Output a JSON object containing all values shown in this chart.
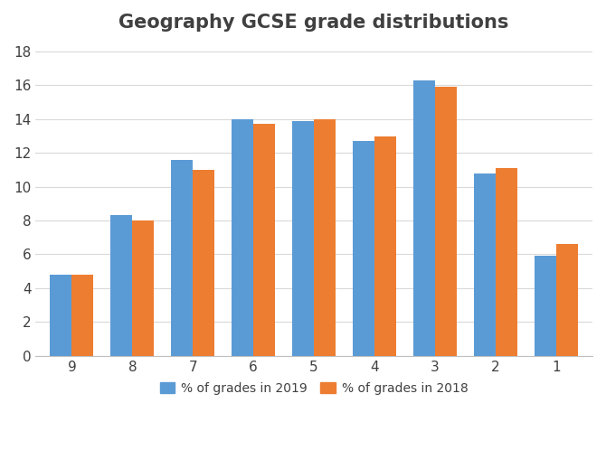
{
  "title": "Geography GCSE grade distributions",
  "categories": [
    "9",
    "8",
    "7",
    "6",
    "5",
    "4",
    "3",
    "2",
    "1"
  ],
  "values_2019": [
    4.8,
    8.3,
    11.6,
    14.0,
    13.9,
    12.7,
    16.3,
    10.8,
    5.9
  ],
  "values_2018": [
    4.8,
    8.0,
    11.0,
    13.7,
    14.0,
    13.0,
    15.9,
    11.1,
    6.6
  ],
  "color_2019": "#5B9BD5",
  "color_2018": "#ED7D31",
  "legend_2019": "% of grades in 2019",
  "legend_2018": "% of grades in 2018",
  "ylim": [
    0,
    18.5
  ],
  "yticks": [
    0,
    2,
    4,
    6,
    8,
    10,
    12,
    14,
    16,
    18
  ],
  "background_color": "#FFFFFF",
  "title_fontsize": 15,
  "tick_fontsize": 11,
  "bar_width": 0.36,
  "grid_color": "#D9D9D9",
  "title_color": "#404040",
  "tick_color": "#404040",
  "spine_color": "#BFBFBF",
  "legend_fontsize": 10
}
